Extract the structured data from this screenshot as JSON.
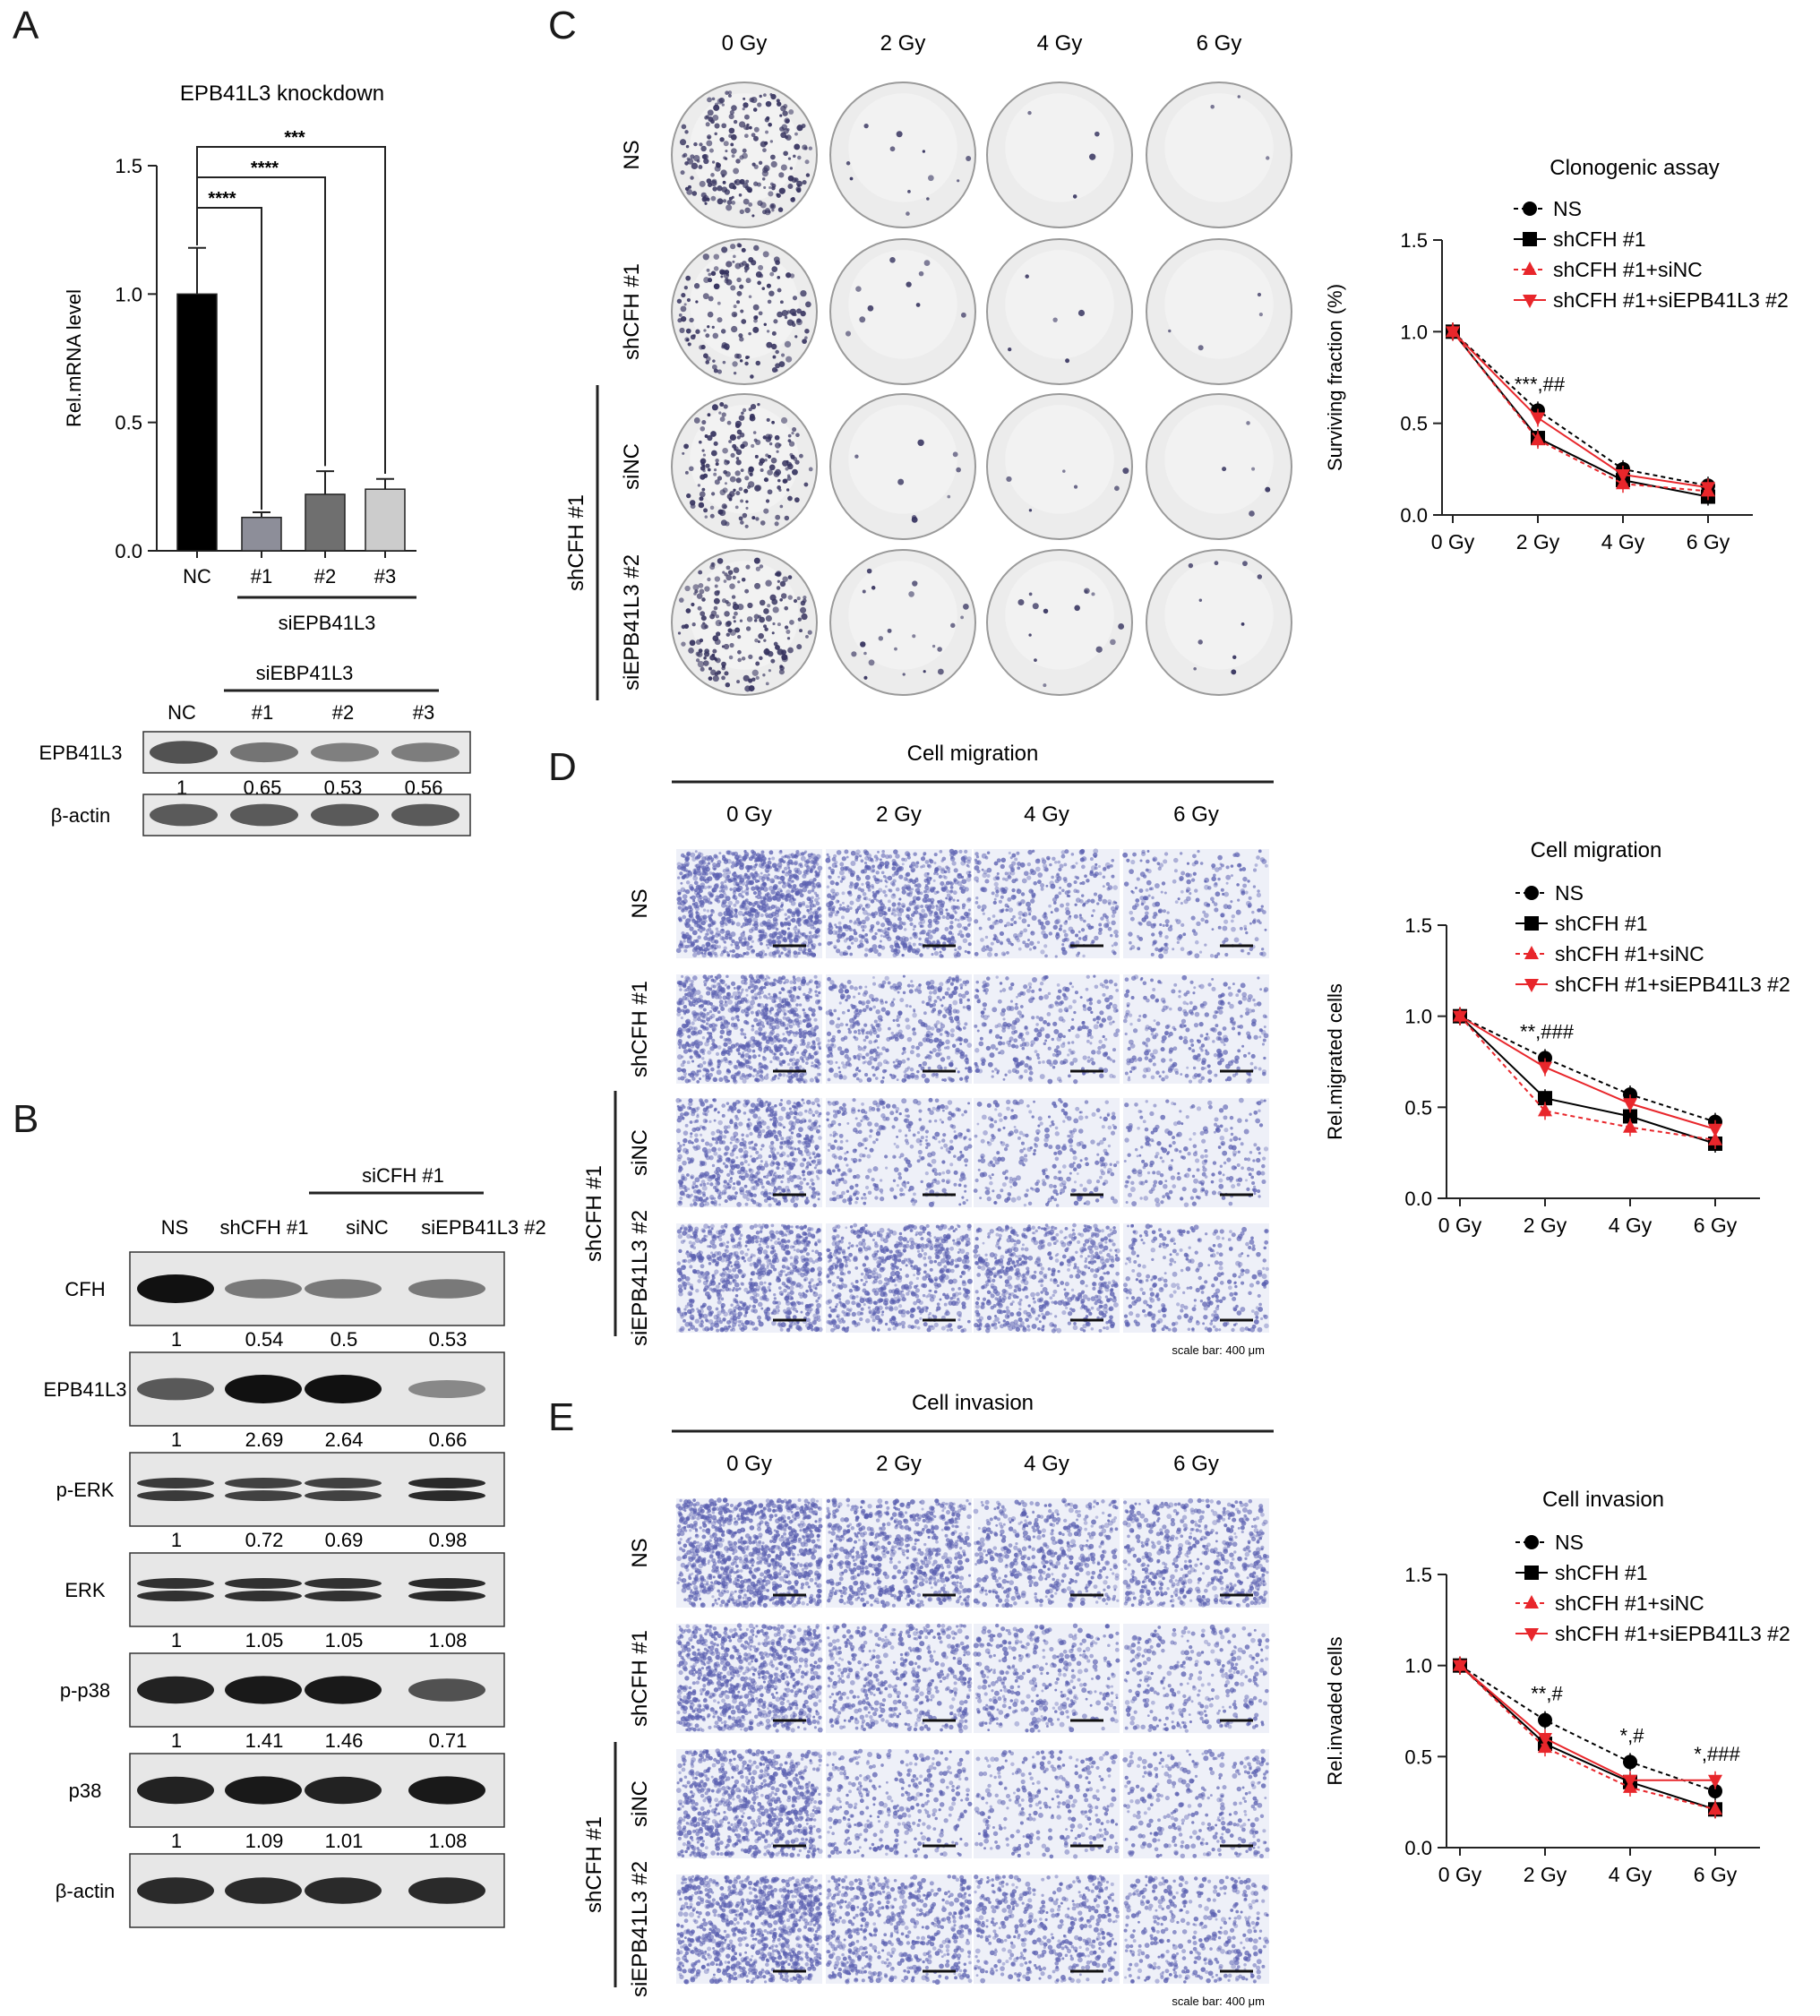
{
  "panels": {
    "A": {
      "label": "A",
      "chart_data": {
        "type": "bar",
        "title": "EPB41L3 knockdown",
        "ylabel": "Rel.mRNA level",
        "xlabel": "",
        "group_label": "siEPB41L3",
        "categories": [
          "NC",
          "#1",
          "#2",
          "#3"
        ],
        "values": [
          1.0,
          0.13,
          0.22,
          0.24
        ],
        "errors": [
          0.18,
          0.02,
          0.09,
          0.04
        ],
        "colors": [
          "#000000",
          "#8d8e99",
          "#6f6f6f",
          "#cccccc"
        ],
        "ylim": [
          0,
          1.5
        ],
        "yticks": [
          "0.0",
          "0.5",
          "1.0",
          "1.5"
        ],
        "significance": [
          "****",
          "****",
          "***"
        ]
      },
      "blot": {
        "group_label": "siEBP41L3",
        "lanes": [
          "NC",
          "#1",
          "#2",
          "#3"
        ],
        "rows": [
          {
            "name": "EPB41L3",
            "quant": [
              "1",
              "0.65",
              "0.53",
              "0.56"
            ]
          },
          {
            "name": "β-actin",
            "quant": []
          }
        ]
      }
    },
    "B": {
      "label": "B",
      "group_label": "siCFH #1",
      "lanes": [
        "NS",
        "shCFH #1",
        "siNC",
        "siEPB41L3 #2"
      ],
      "rows": [
        {
          "name": "CFH",
          "quant": [
            "1",
            "0.54",
            "0.5",
            "0.53"
          ]
        },
        {
          "name": "EPB41L3",
          "quant": [
            "1",
            "2.69",
            "2.64",
            "0.66"
          ]
        },
        {
          "name": "p-ERK",
          "quant": [
            "1",
            "0.72",
            "0.69",
            "0.98"
          ]
        },
        {
          "name": "ERK",
          "quant": [
            "1",
            "1.05",
            "1.05",
            "1.08"
          ]
        },
        {
          "name": "p-p38",
          "quant": [
            "1",
            "1.41",
            "1.46",
            "0.71"
          ]
        },
        {
          "name": "p38",
          "quant": [
            "1",
            "1.09",
            "1.01",
            "1.08"
          ]
        },
        {
          "name": "β-actin",
          "quant": []
        }
      ]
    },
    "C": {
      "label": "C",
      "doses": [
        "0 Gy",
        "2 Gy",
        "4 Gy",
        "6 Gy"
      ],
      "rows": [
        "NS",
        "shCFH #1",
        "siNC",
        "siEPB41L3 #2"
      ],
      "bracket_label": "shCFH #1"
    },
    "D": {
      "label": "D",
      "header": "Cell migration",
      "doses": [
        "0 Gy",
        "2 Gy",
        "4 Gy",
        "6 Gy"
      ],
      "rows": [
        "NS",
        "shCFH #1",
        "siNC",
        "siEPB41L3 #2"
      ],
      "bracket_label": "shCFH #1",
      "scale_bar": "scale bar: 400 μm"
    },
    "E": {
      "label": "E",
      "header": "Cell invasion",
      "doses": [
        "0 Gy",
        "2 Gy",
        "4 Gy",
        "6 Gy"
      ],
      "rows": [
        "NS",
        "shCFH #1",
        "siNC",
        "siEPB41L3 #2"
      ],
      "bracket_label": "shCFH #1",
      "scale_bar": "scale bar: 400 μm"
    }
  },
  "chart_data": [
    {
      "type": "line",
      "title": "Clonogenic assay",
      "ylabel": "Surviving fraction (%)",
      "xlabel": "",
      "x": [
        "0 Gy",
        "2 Gy",
        "4 Gy",
        "6 Gy"
      ],
      "ylim": [
        0,
        1.5
      ],
      "yticks": [
        "0.0",
        "0.5",
        "1.0",
        "1.5"
      ],
      "series": [
        {
          "name": "NS",
          "values": [
            1.0,
            0.57,
            0.25,
            0.16
          ],
          "color": "#000000",
          "marker": "circle",
          "dash": true
        },
        {
          "name": "shCFH #1",
          "values": [
            1.0,
            0.42,
            0.19,
            0.1
          ],
          "color": "#000000",
          "marker": "square",
          "dash": false
        },
        {
          "name": "shCFH #1+siNC",
          "values": [
            1.0,
            0.41,
            0.17,
            0.13
          ],
          "color": "#e8262b",
          "marker": "triangle-up",
          "dash": true
        },
        {
          "name": "shCFH #1+siEPB41L3 #2",
          "values": [
            1.0,
            0.53,
            0.22,
            0.15
          ],
          "color": "#e8262b",
          "marker": "triangle-down",
          "dash": false
        }
      ],
      "annotations": [
        {
          "x": "2 Gy",
          "text": "***,##"
        }
      ]
    },
    {
      "type": "line",
      "title": "Cell migration",
      "ylabel": "Rel.migrated cells",
      "xlabel": "",
      "x": [
        "0 Gy",
        "2 Gy",
        "4 Gy",
        "6 Gy"
      ],
      "ylim": [
        0,
        1.5
      ],
      "yticks": [
        "0.0",
        "0.5",
        "1.0",
        "1.5"
      ],
      "series": [
        {
          "name": "NS",
          "values": [
            1.0,
            0.77,
            0.57,
            0.42
          ],
          "color": "#000000",
          "marker": "circle",
          "dash": true
        },
        {
          "name": "shCFH #1",
          "values": [
            1.0,
            0.55,
            0.45,
            0.3
          ],
          "color": "#000000",
          "marker": "square",
          "dash": false
        },
        {
          "name": "shCFH #1+siNC",
          "values": [
            1.0,
            0.48,
            0.39,
            0.32
          ],
          "color": "#e8262b",
          "marker": "triangle-up",
          "dash": true
        },
        {
          "name": "shCFH #1+siEPB41L3 #2",
          "values": [
            1.0,
            0.72,
            0.52,
            0.38
          ],
          "color": "#e8262b",
          "marker": "triangle-down",
          "dash": false
        }
      ],
      "annotations": [
        {
          "x": "2 Gy",
          "text": "**,###"
        }
      ]
    },
    {
      "type": "line",
      "title": "Cell invasion",
      "ylabel": "Rel.invaded cells",
      "xlabel": "",
      "x": [
        "0 Gy",
        "2 Gy",
        "4 Gy",
        "6 Gy"
      ],
      "ylim": [
        0,
        1.5
      ],
      "yticks": [
        "0.0",
        "0.5",
        "1.0",
        "1.5"
      ],
      "series": [
        {
          "name": "NS",
          "values": [
            1.0,
            0.7,
            0.47,
            0.31
          ],
          "color": "#000000",
          "marker": "circle",
          "dash": true
        },
        {
          "name": "shCFH #1",
          "values": [
            1.0,
            0.57,
            0.36,
            0.21
          ],
          "color": "#000000",
          "marker": "square",
          "dash": false
        },
        {
          "name": "shCFH #1+siNC",
          "values": [
            1.0,
            0.55,
            0.33,
            0.21
          ],
          "color": "#e8262b",
          "marker": "triangle-up",
          "dash": true
        },
        {
          "name": "shCFH #1+siEPB41L3 #2",
          "values": [
            1.0,
            0.6,
            0.37,
            0.37
          ],
          "color": "#e8262b",
          "marker": "triangle-down",
          "dash": false
        }
      ],
      "annotations": [
        {
          "x": "2 Gy",
          "text": "**,#"
        },
        {
          "x": "4 Gy",
          "text": "*,#"
        },
        {
          "x": "6 Gy",
          "text": "*,###"
        }
      ]
    }
  ]
}
